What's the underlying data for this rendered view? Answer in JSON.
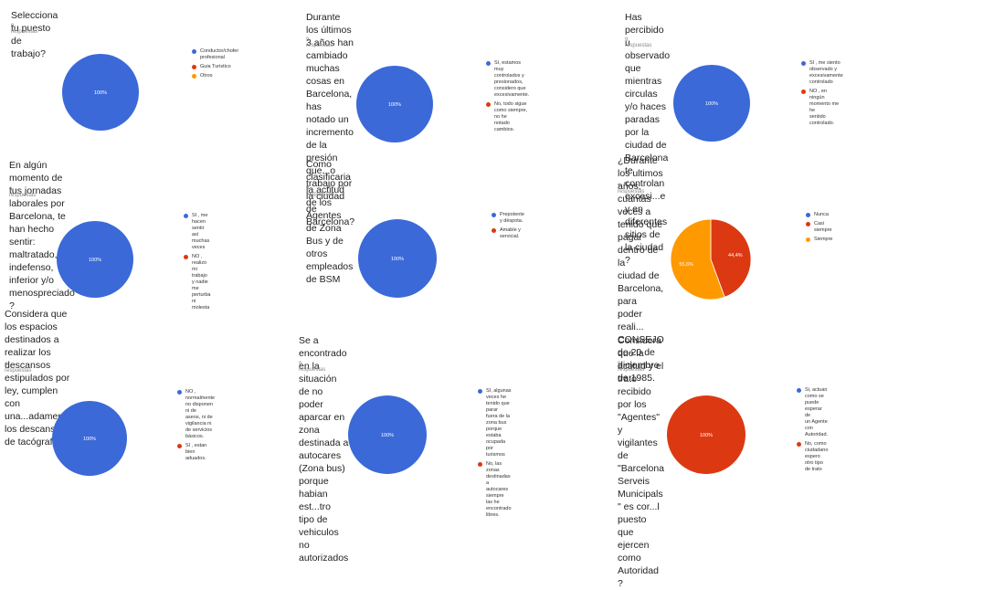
{
  "colors": {
    "blue": "#3b69d8",
    "red": "#dc3912",
    "orange": "#ff9900"
  },
  "chart_data": [
    {
      "type": "pie",
      "title": "Selecciona tu puesto de trabajo?",
      "subtitle": "9 respuestas",
      "categories": [
        "Conductor/chofer profesional",
        "Guia Turistico",
        "Otros"
      ],
      "values": [
        100,
        0,
        0
      ],
      "colors": [
        "#3b69d8",
        "#dc3912",
        "#ff9900"
      ],
      "slice_labels": [
        "100%"
      ],
      "legend_position": "right"
    },
    {
      "type": "pie",
      "title": "Durante los últimos 3 años han cambiado muchas cosas en Barcelona, has\nnotado un incremento de la presión que...o trabajo por la ciudad de Barcelona?",
      "subtitle": "9 respuestas",
      "categories": [
        "Sí, estamos muy controlados y\npresionados, considero que\nexcesivamente.",
        "No, todo sigue como siempre, no he\nnotado cambios."
      ],
      "values": [
        100,
        0
      ],
      "colors": [
        "#3b69d8",
        "#dc3912"
      ],
      "slice_labels": [
        "100%"
      ],
      "legend_position": "right"
    },
    {
      "type": "pie",
      "title": "Has percibido u observado que mientras circulas y/o haces paradas por la\nciudad de Barcelona te controlan excesi...e y en diferentes sitios de la ciudad ?",
      "subtitle": "9 respuestas",
      "categories": [
        "SI , me siento observado y\nexcesivamente controlado",
        "NO , en ningún momento me he\nsentido controlado."
      ],
      "values": [
        100,
        0
      ],
      "colors": [
        "#3b69d8",
        "#dc3912"
      ],
      "slice_labels": [
        "100%"
      ],
      "legend_position": "right"
    },
    {
      "type": "pie",
      "title": "En algún momento de tus jornadas laborales por Barcelona, te han hecho\nsentir:  maltratado, indefenso, inferior y/o menospreciado ?",
      "subtitle": "9 respuestas",
      "categories": [
        "SI , me hacen sentir así muchas\nveces",
        "NO , realizo mi trabajo y nadie me\nperturba ni molesta"
      ],
      "values": [
        100,
        0
      ],
      "colors": [
        "#3b69d8",
        "#dc3912"
      ],
      "slice_labels": [
        "100%"
      ],
      "legend_position": "right"
    },
    {
      "type": "pie",
      "title": "Como clasificaria la actitud de los Agentes de Zona Bus y de otros\nempleados de BSM",
      "subtitle": "9 respuestas",
      "categories": [
        "Prepotente y déspota.",
        "Amable y servicial."
      ],
      "values": [
        100,
        0
      ],
      "colors": [
        "#3b69d8",
        "#dc3912"
      ],
      "slice_labels": [
        "100%"
      ],
      "legend_position": "right"
    },
    {
      "type": "pie",
      "title": "¿Durante los ultimos años, cuantas veces a tenido   que pagar dentro de la\nciudad de Barcelona, para poder reali... CONSEJO de 20 de diciembre de 1985.",
      "subtitle": "9 respuestas",
      "categories": [
        "Nunca",
        "Casi siempre",
        "Siempre"
      ],
      "values": [
        0,
        44.4,
        55.6
      ],
      "colors": [
        "#3b69d8",
        "#dc3912",
        "#ff9900"
      ],
      "slice_labels": [
        "",
        "44,4%",
        "55,6%"
      ],
      "legend_position": "right"
    },
    {
      "type": "pie",
      "title": "Considera que los espacios destinados a realizar los descansos\nestipulados por ley, cumplen con una...adamente los descansos de tacógrafo?",
      "subtitle": "9 respuestas",
      "categories": [
        "NO , normalmente no disponen ni de\naseos, ni de vigilancia ni de servicios\nbásicos.",
        "SI , estan bien aduados."
      ],
      "values": [
        100,
        0
      ],
      "colors": [
        "#3b69d8",
        "#dc3912"
      ],
      "slice_labels": [
        "100%"
      ],
      "legend_position": "right"
    },
    {
      "type": "pie",
      "title": "Se a encontrado en la situación de no poder aparcar en zona destinada a\nautocares (Zona bus) porque habian est...tro tipo de vehiculos no autorizados",
      "subtitle": "9 respuestas",
      "categories": [
        "SI, algunas veces he tenido que parar\nfuera de la zona bus porque estaba\nocupada por turismos",
        "No, las zonas destinadas a autocares\nsiempre las he encontrado libres."
      ],
      "values": [
        100,
        0
      ],
      "colors": [
        "#3b69d8",
        "#dc3912"
      ],
      "slice_labels": [
        "100%"
      ],
      "legend_position": "right"
    },
    {
      "type": "pie",
      "title": "Considera que la actitud y el trato recibido por los \"Agentes\"  y vigilantes de\n\"Barcelona Serveis Municipals \" es cor...l puesto que ejercen como Autoridad ?",
      "subtitle": "9 respuestas",
      "categories": [
        "Si, actuan como se puede esperar de\nun Agente con Autoridad.",
        "No, como ciudadano espero otro tipo\nde trato"
      ],
      "values": [
        0,
        100
      ],
      "colors": [
        "#3b69d8",
        "#dc3912"
      ],
      "slice_labels": [
        "",
        "100%"
      ],
      "legend_position": "right"
    }
  ]
}
